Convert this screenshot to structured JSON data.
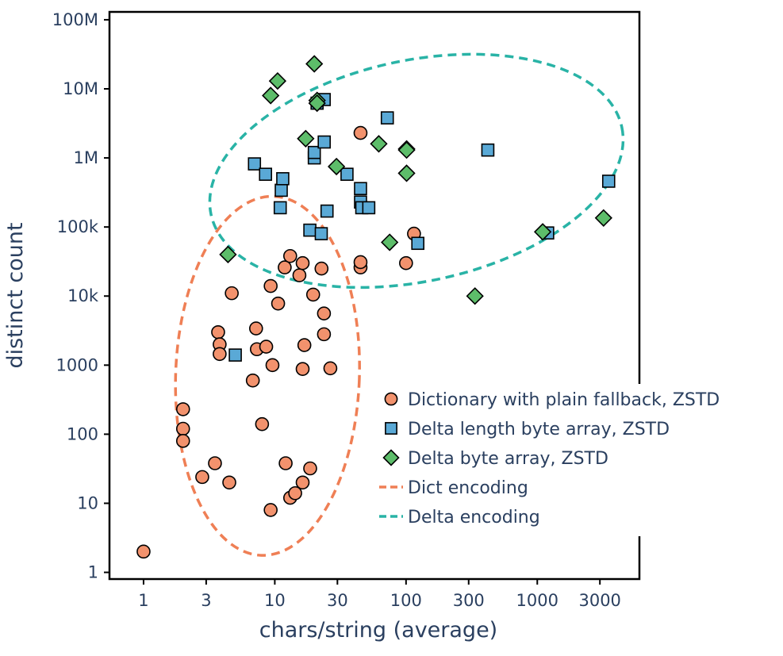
{
  "chart_data": {
    "type": "scatter",
    "xlabel": "chars/string (average)",
    "ylabel": "distinct count",
    "xscale": "log",
    "yscale": "log",
    "xlim": [
      0.55,
      6000
    ],
    "ylim": [
      0.8,
      130000000
    ],
    "grid": false,
    "legend_position": "bottom-right",
    "x_ticks": [
      {
        "value": 1,
        "label": "1"
      },
      {
        "value": 3,
        "label": "3"
      },
      {
        "value": 10,
        "label": "10"
      },
      {
        "value": 30,
        "label": "30"
      },
      {
        "value": 100,
        "label": "100"
      },
      {
        "value": 300,
        "label": "300"
      },
      {
        "value": 1000,
        "label": "1000"
      },
      {
        "value": 3000,
        "label": "3000"
      }
    ],
    "y_ticks": [
      {
        "value": 1,
        "label": "1"
      },
      {
        "value": 10,
        "label": "10"
      },
      {
        "value": 100,
        "label": "100"
      },
      {
        "value": 1000,
        "label": "1000"
      },
      {
        "value": 10000,
        "label": "10k"
      },
      {
        "value": 100000,
        "label": "100k"
      },
      {
        "value": 1000000,
        "label": "1M"
      },
      {
        "value": 10000000,
        "label": "10M"
      },
      {
        "value": 100000000,
        "label": "100M"
      }
    ],
    "series": [
      {
        "name": "Dictionary with plain fallback, ZSTD",
        "marker": "circle",
        "color": "#f2926d",
        "points": [
          [
            1,
            2
          ],
          [
            2,
            230
          ],
          [
            2,
            120
          ],
          [
            2,
            80
          ],
          [
            2.8,
            24
          ],
          [
            3.5,
            38
          ],
          [
            4.5,
            20
          ],
          [
            4.7,
            11000
          ],
          [
            3.7,
            3000
          ],
          [
            3.8,
            2000
          ],
          [
            3.8,
            1450
          ],
          [
            6.8,
            600
          ],
          [
            7.2,
            3400
          ],
          [
            7.3,
            1700
          ],
          [
            8.6,
            1850
          ],
          [
            8.0,
            140
          ],
          [
            9.3,
            14000
          ],
          [
            9.6,
            1000
          ],
          [
            9.3,
            8
          ],
          [
            10.6,
            7800
          ],
          [
            11.9,
            26000
          ],
          [
            12.1,
            38
          ],
          [
            13.1,
            38000
          ],
          [
            13.1,
            12
          ],
          [
            14.3,
            14
          ],
          [
            15.4,
            20000
          ],
          [
            16.3,
            30000
          ],
          [
            16.3,
            880
          ],
          [
            16.8,
            1950
          ],
          [
            16.3,
            20
          ],
          [
            18.6,
            32
          ],
          [
            19.6,
            10500
          ],
          [
            22.7,
            25000
          ],
          [
            23.7,
            5600
          ],
          [
            23.7,
            2800
          ],
          [
            26.5,
            900
          ],
          [
            45,
            2300000
          ],
          [
            45,
            26000
          ],
          [
            45,
            31000
          ],
          [
            100,
            30000
          ],
          [
            115,
            80000
          ]
        ]
      },
      {
        "name": "Delta length byte array, ZSTD",
        "marker": "square",
        "color": "#5aa9d6",
        "points": [
          [
            5.0,
            1400
          ],
          [
            7.0,
            820000
          ],
          [
            8.5,
            580000
          ],
          [
            11.0,
            190000
          ],
          [
            11.2,
            340000
          ],
          [
            11.5,
            500000
          ],
          [
            18.5,
            90000
          ],
          [
            20.0,
            1000000
          ],
          [
            20.0,
            1200000
          ],
          [
            21,
            6200000
          ],
          [
            22.6,
            80000
          ],
          [
            23.8,
            7000000
          ],
          [
            23.8,
            1700000
          ],
          [
            25.0,
            170000
          ],
          [
            35.5,
            580000
          ],
          [
            45,
            360000
          ],
          [
            45,
            230000
          ],
          [
            46,
            190000
          ],
          [
            52,
            190000
          ],
          [
            72,
            3800000
          ],
          [
            123,
            58000
          ],
          [
            420,
            1300000
          ],
          [
            1200,
            82000
          ],
          [
            3500,
            460000
          ]
        ]
      },
      {
        "name": "Delta byte array, ZSTD",
        "marker": "diamond",
        "color": "#5dbd6a",
        "points": [
          [
            4.4,
            40000
          ],
          [
            9.3,
            8000000
          ],
          [
            10.5,
            13000000
          ],
          [
            17.2,
            1900000
          ],
          [
            20.0,
            23000000
          ],
          [
            21.0,
            6800000
          ],
          [
            21.0,
            6200000
          ],
          [
            29.5,
            750000
          ],
          [
            62.0,
            1600000
          ],
          [
            75.0,
            60000
          ],
          [
            101,
            1350000
          ],
          [
            101,
            1300000
          ],
          [
            101,
            600000
          ],
          [
            335,
            10000
          ],
          [
            1100,
            85000
          ],
          [
            3200,
            135000
          ]
        ]
      }
    ],
    "ellipses": [
      {
        "name": "Dict encoding",
        "color": "#ef7f55",
        "center": [
          8.8,
          700
        ],
        "semi_axis_x_decades": 0.7,
        "semi_axis_y_decades": 2.6,
        "rotation_deg": 2
      },
      {
        "name": "Delta encoding",
        "color": "#29b3a6",
        "center": [
          120,
          650000
        ],
        "semi_axis_x_decades": 1.6,
        "semi_axis_y_decades": 1.6,
        "rotation_deg": -12
      }
    ]
  }
}
